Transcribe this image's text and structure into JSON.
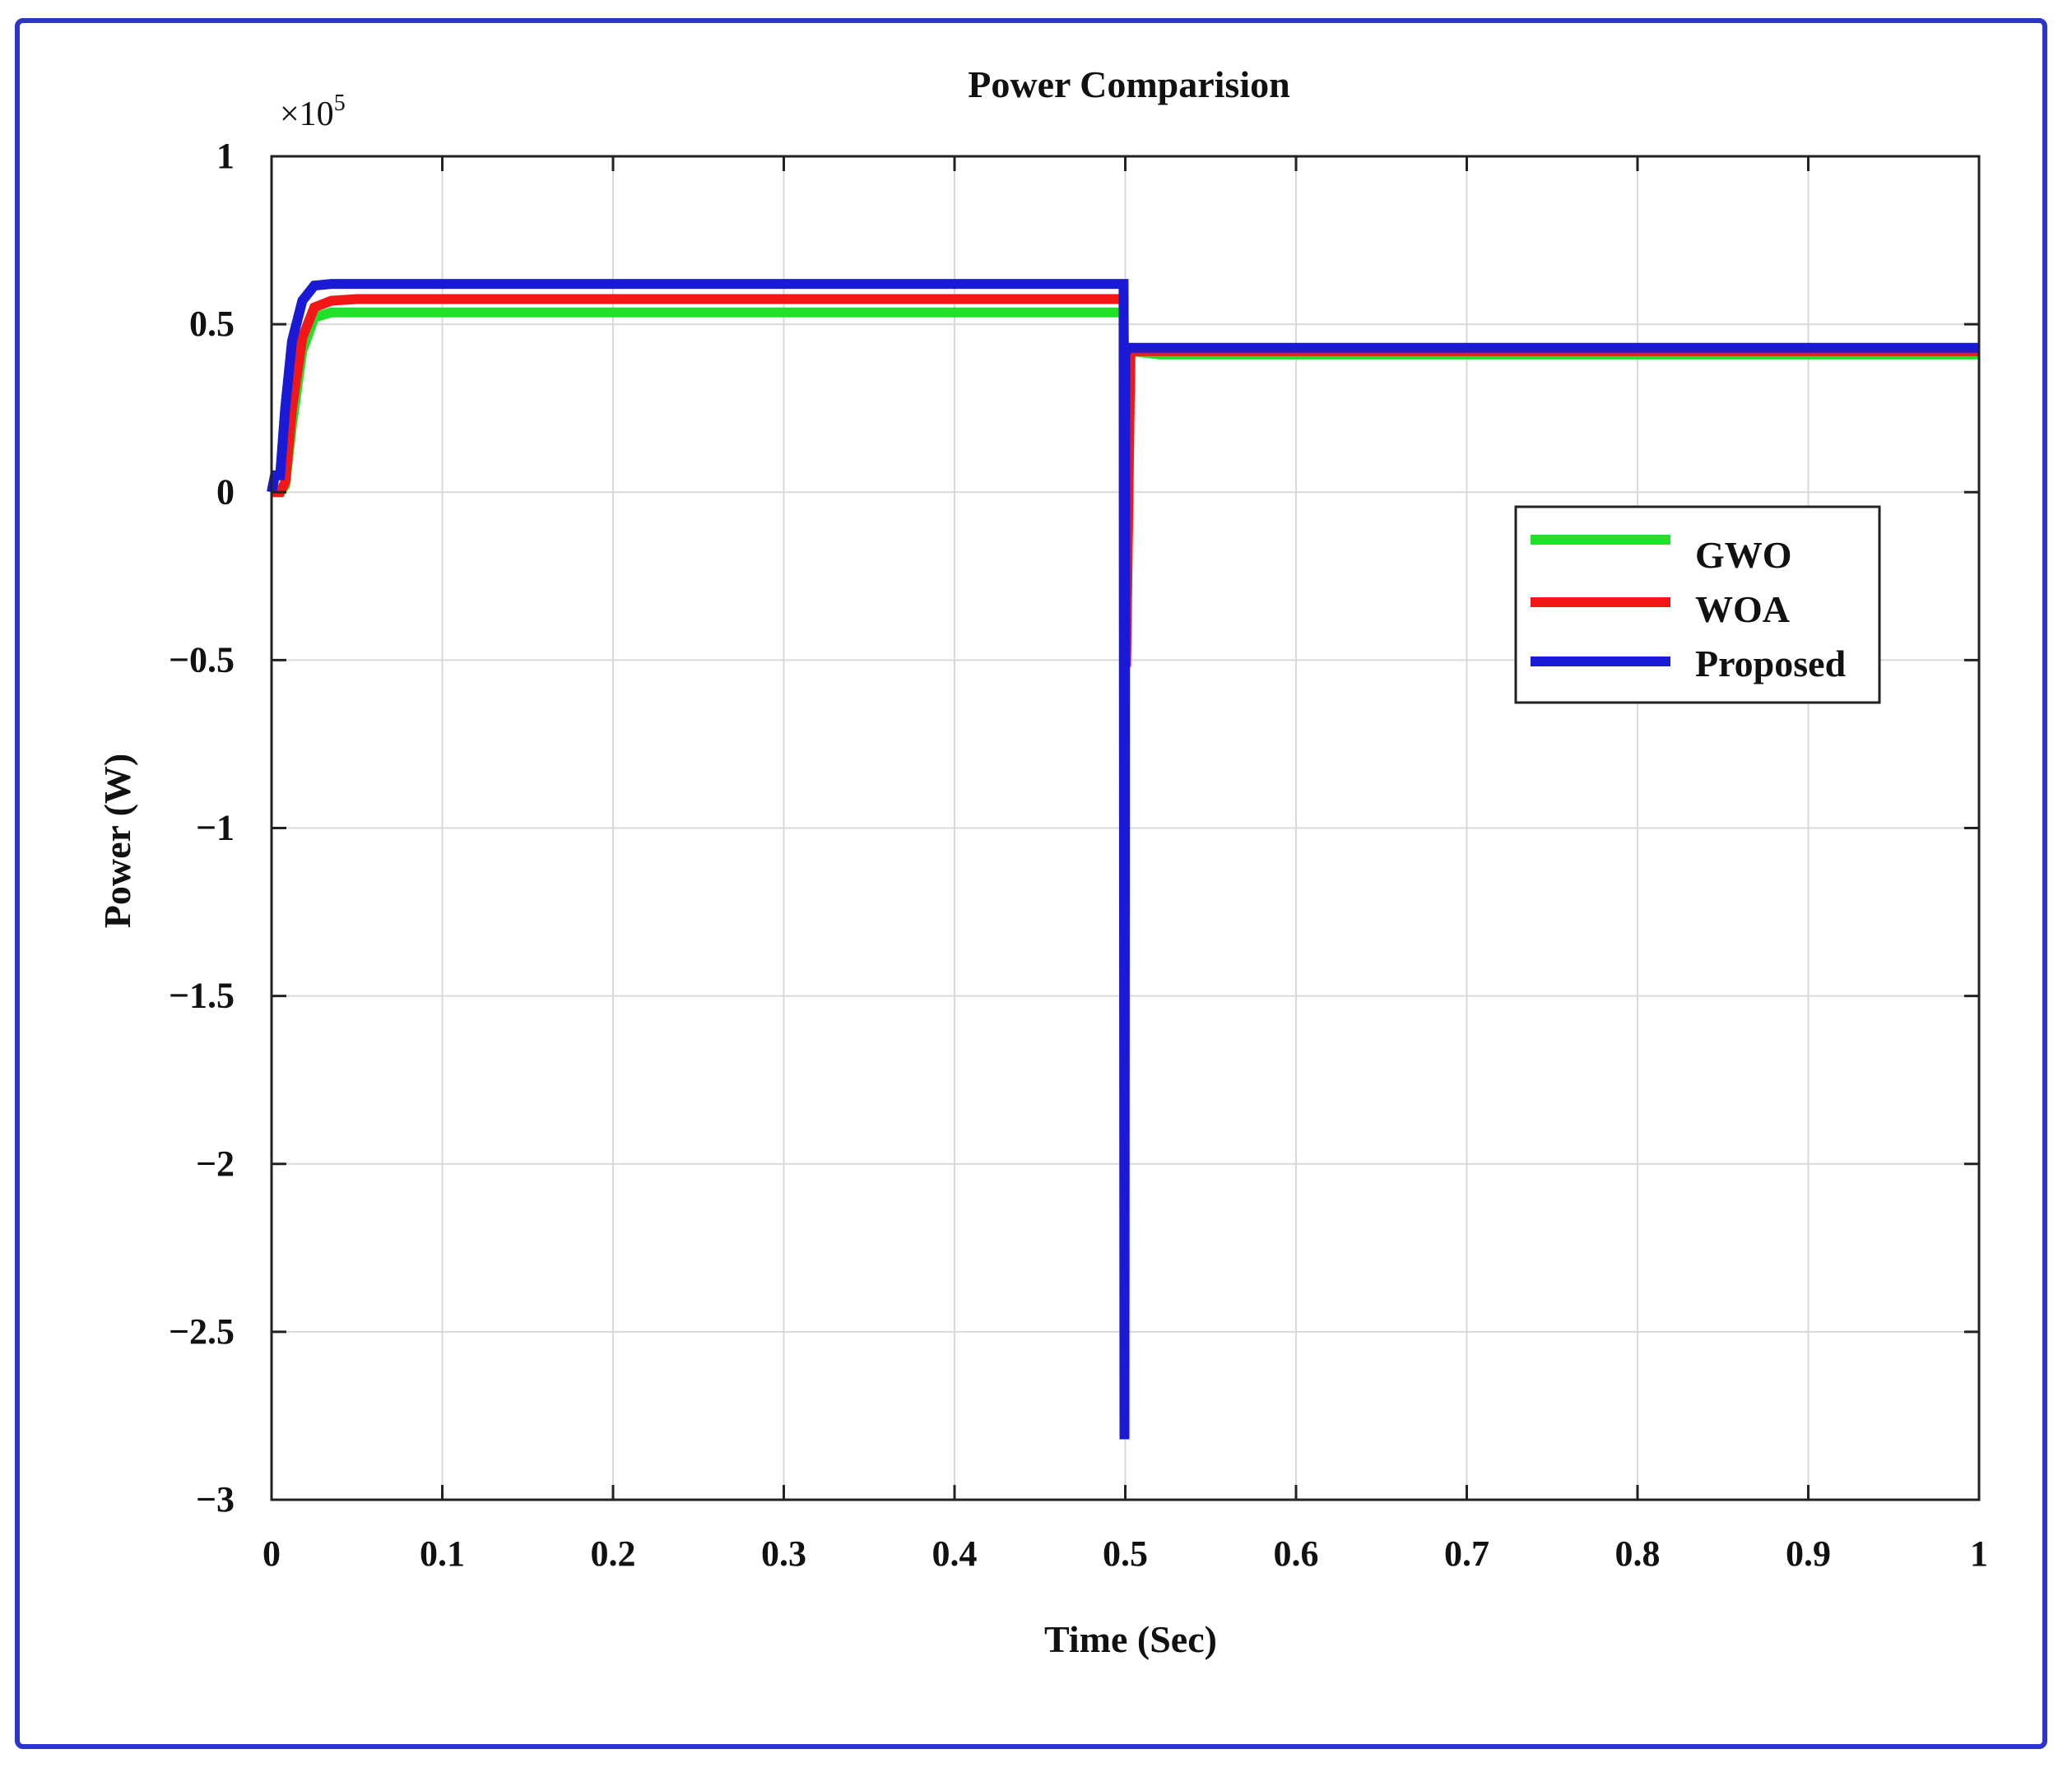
{
  "chart_data": {
    "type": "line",
    "title": "Power Comparision",
    "xlabel": "Time (Sec)",
    "ylabel": "Power (W)",
    "y_exponent_base": "×10",
    "y_exponent_power": "5",
    "xlim": [
      0,
      1
    ],
    "ylim": [
      -3,
      1
    ],
    "x_ticks": [
      0,
      0.1,
      0.2,
      0.3,
      0.4,
      0.5,
      0.6,
      0.7,
      0.8,
      0.9,
      1
    ],
    "x_tick_labels": [
      "0",
      "0.1",
      "0.2",
      "0.3",
      "0.4",
      "0.5",
      "0.6",
      "0.7",
      "0.8",
      "0.9",
      "1"
    ],
    "y_ticks": [
      1,
      0.5,
      0,
      -0.5,
      -1,
      -1.5,
      -2,
      -2.5,
      -3
    ],
    "y_tick_labels": [
      "1",
      "0.5",
      "0",
      "−0.5",
      "−1",
      "−1.5",
      "−2",
      "−2.5",
      "−3"
    ],
    "grid": true,
    "legend_position": "right",
    "series": [
      {
        "name": "GWO",
        "color": "#22e02a",
        "x": [
          0,
          0.002,
          0.005,
          0.008,
          0.012,
          0.018,
          0.025,
          0.035,
          0.05,
          0.1,
          0.2,
          0.3,
          0.4,
          0.48,
          0.497,
          0.499,
          0.5005,
          0.503,
          0.52,
          0.6,
          0.7,
          0.8,
          0.9,
          1.0
        ],
        "y": [
          0,
          0,
          0.0,
          0.02,
          0.2,
          0.42,
          0.52,
          0.535,
          0.535,
          0.535,
          0.535,
          0.535,
          0.535,
          0.535,
          0.535,
          0.535,
          -0.5,
          0.42,
          0.41,
          0.41,
          0.41,
          0.41,
          0.41,
          0.41
        ]
      },
      {
        "name": "WOA",
        "color": "#f21818",
        "x": [
          0,
          0.002,
          0.005,
          0.008,
          0.012,
          0.018,
          0.025,
          0.035,
          0.05,
          0.1,
          0.2,
          0.3,
          0.4,
          0.48,
          0.497,
          0.499,
          0.5005,
          0.503,
          0.52,
          0.6,
          0.7,
          0.8,
          0.9,
          1.0
        ],
        "y": [
          0,
          0,
          0.0,
          0.03,
          0.25,
          0.46,
          0.55,
          0.57,
          0.575,
          0.575,
          0.575,
          0.575,
          0.575,
          0.575,
          0.575,
          0.575,
          -0.52,
          0.42,
          0.42,
          0.42,
          0.42,
          0.42,
          0.42,
          0.42
        ]
      },
      {
        "name": "Proposed",
        "color": "#1a1ad6",
        "x": [
          0,
          0.002,
          0.005,
          0.008,
          0.012,
          0.018,
          0.025,
          0.035,
          0.05,
          0.1,
          0.2,
          0.3,
          0.4,
          0.48,
          0.497,
          0.499,
          0.4995,
          0.5,
          0.503,
          0.52,
          0.6,
          0.7,
          0.8,
          0.9,
          1.0
        ],
        "y": [
          0,
          0.05,
          0.05,
          0.25,
          0.45,
          0.57,
          0.615,
          0.62,
          0.62,
          0.62,
          0.62,
          0.62,
          0.62,
          0.62,
          0.62,
          0.62,
          -2.82,
          0.42,
          0.43,
          0.43,
          0.43,
          0.43,
          0.43,
          0.43,
          0.43
        ]
      }
    ]
  }
}
